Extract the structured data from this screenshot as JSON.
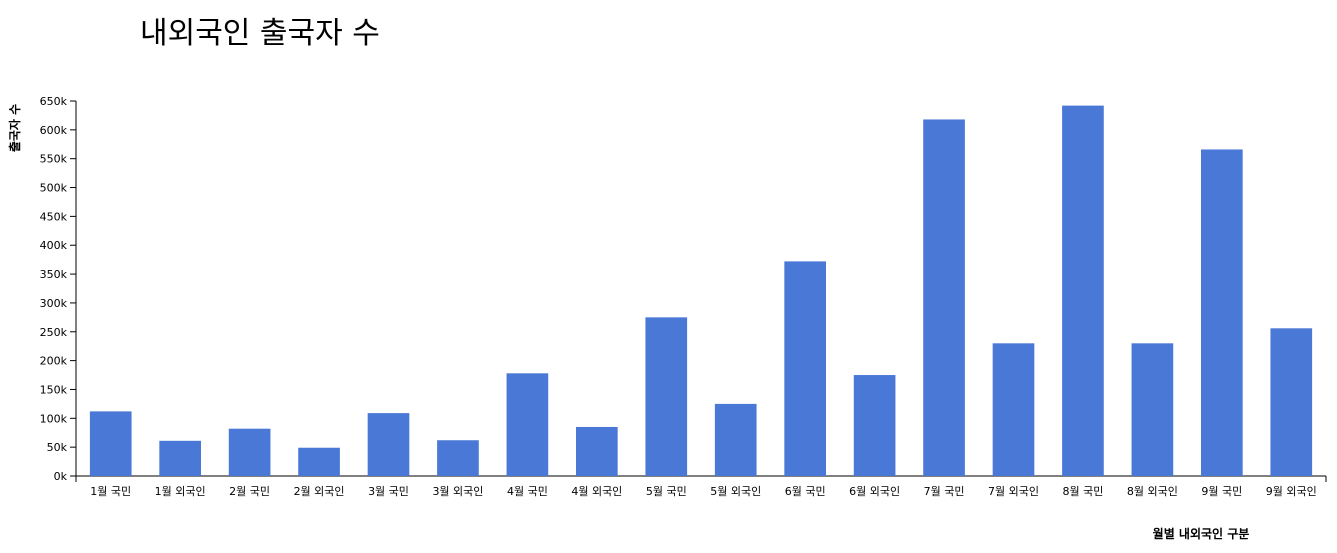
{
  "chart_data": {
    "type": "bar",
    "title": "내외국인 출국자 수",
    "xlabel": "월별 내외국인 구분",
    "ylabel": "출국자 수",
    "categories": [
      "1월 국민",
      "1월 외국인",
      "2월 국민",
      "2월 외국인",
      "3월 국민",
      "3월 외국인",
      "4월 국민",
      "4월 외국인",
      "5월 국민",
      "5월 외국인",
      "6월 국민",
      "6월 외국인",
      "7월 국민",
      "7월 외국인",
      "8월 국민",
      "8월 외국인",
      "9월 국민",
      "9월 외국인"
    ],
    "values": [
      112000,
      61000,
      82000,
      49000,
      109000,
      62000,
      178000,
      85000,
      275000,
      125000,
      372000,
      175000,
      618000,
      230000,
      642000,
      230000,
      566000,
      256000
    ],
    "ylim": [
      0,
      650000
    ],
    "yticks": [
      0,
      50000,
      100000,
      150000,
      200000,
      250000,
      300000,
      350000,
      400000,
      450000,
      500000,
      550000,
      600000,
      650000
    ],
    "ytick_labels": [
      "0k",
      "50k",
      "100k",
      "150k",
      "200k",
      "250k",
      "300k",
      "350k",
      "400k",
      "450k",
      "500k",
      "550k",
      "600k",
      "650k"
    ],
    "bar_color": "#4a78d6",
    "grid": false
  }
}
